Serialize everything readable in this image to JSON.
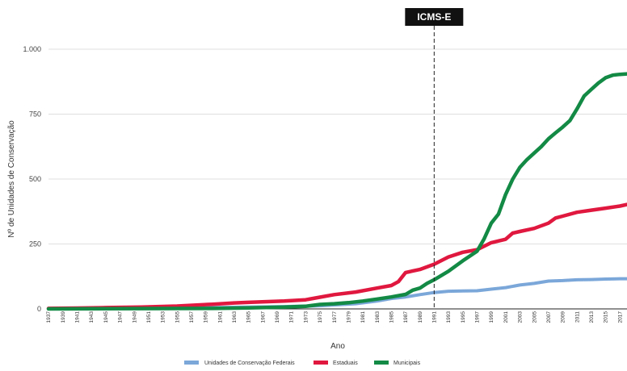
{
  "chart_data": {
    "type": "line",
    "xlabel": "Ano",
    "ylabel": "Nº de Unidades de Conservação",
    "ylim": [
      0,
      1000
    ],
    "yticks": [
      0,
      250,
      500,
      750,
      1000
    ],
    "ytick_labels": [
      "0",
      "250",
      "500",
      "750",
      "1.000"
    ],
    "xlim": [
      1937,
      2018
    ],
    "x_tick_labels": [
      "1937",
      "1939",
      "1941",
      "1943",
      "1945",
      "1947",
      "1949",
      "1951",
      "1953",
      "1955",
      "1957",
      "1959",
      "1961",
      "1963",
      "1965",
      "1967",
      "1969",
      "1971",
      "1973",
      "1975",
      "1977",
      "1979",
      "1981",
      "1983",
      "1985",
      "1987",
      "1989",
      "1991",
      "1993",
      "1995",
      "1997",
      "1999",
      "2001",
      "2003",
      "2005",
      "2007",
      "2009",
      "2011",
      "2013",
      "2015",
      "2017"
    ],
    "grid": "horizontal",
    "legend_position": "bottom",
    "annotation": {
      "x": 1991,
      "label": "ICMS-E",
      "line_style": "dashed"
    },
    "series": [
      {
        "name": "Unidades de Conservação Federais",
        "color": "#7ba7d9",
        "points": [
          [
            1937,
            2
          ],
          [
            1950,
            3
          ],
          [
            1960,
            5
          ],
          [
            1965,
            7
          ],
          [
            1970,
            9
          ],
          [
            1975,
            12
          ],
          [
            1980,
            20
          ],
          [
            1983,
            30
          ],
          [
            1985,
            40
          ],
          [
            1987,
            46
          ],
          [
            1989,
            55
          ],
          [
            1991,
            63
          ],
          [
            1993,
            68
          ],
          [
            1995,
            69
          ],
          [
            1997,
            70
          ],
          [
            1999,
            76
          ],
          [
            2001,
            82
          ],
          [
            2003,
            92
          ],
          [
            2005,
            98
          ],
          [
            2007,
            107
          ],
          [
            2009,
            109
          ],
          [
            2011,
            112
          ],
          [
            2013,
            113
          ],
          [
            2015,
            115
          ],
          [
            2017,
            116
          ],
          [
            2018,
            116
          ]
        ]
      },
      {
        "name": "Estaduais",
        "color": "#e0183f",
        "points": [
          [
            1937,
            2
          ],
          [
            1941,
            3
          ],
          [
            1945,
            5
          ],
          [
            1950,
            7
          ],
          [
            1955,
            11
          ],
          [
            1960,
            18
          ],
          [
            1963,
            23
          ],
          [
            1965,
            25
          ],
          [
            1970,
            30
          ],
          [
            1973,
            35
          ],
          [
            1975,
            45
          ],
          [
            1977,
            55
          ],
          [
            1980,
            65
          ],
          [
            1983,
            80
          ],
          [
            1985,
            90
          ],
          [
            1986,
            105
          ],
          [
            1987,
            140
          ],
          [
            1989,
            152
          ],
          [
            1991,
            172
          ],
          [
            1993,
            200
          ],
          [
            1995,
            218
          ],
          [
            1997,
            228
          ],
          [
            1999,
            255
          ],
          [
            2001,
            268
          ],
          [
            2002,
            292
          ],
          [
            2003,
            298
          ],
          [
            2005,
            310
          ],
          [
            2007,
            330
          ],
          [
            2008,
            350
          ],
          [
            2009,
            357
          ],
          [
            2011,
            372
          ],
          [
            2013,
            380
          ],
          [
            2015,
            388
          ],
          [
            2017,
            396
          ],
          [
            2018,
            402
          ]
        ]
      },
      {
        "name": "Municipais",
        "color": "#138a45",
        "points": [
          [
            1937,
            0
          ],
          [
            1960,
            2
          ],
          [
            1965,
            4
          ],
          [
            1970,
            7
          ],
          [
            1973,
            10
          ],
          [
            1975,
            17
          ],
          [
            1977,
            20
          ],
          [
            1979,
            24
          ],
          [
            1981,
            30
          ],
          [
            1983,
            38
          ],
          [
            1985,
            46
          ],
          [
            1987,
            56
          ],
          [
            1988,
            72
          ],
          [
            1989,
            80
          ],
          [
            1990,
            98
          ],
          [
            1991,
            112
          ],
          [
            1993,
            145
          ],
          [
            1995,
            185
          ],
          [
            1997,
            222
          ],
          [
            1998,
            270
          ],
          [
            1999,
            330
          ],
          [
            2000,
            365
          ],
          [
            2001,
            440
          ],
          [
            2002,
            500
          ],
          [
            2003,
            545
          ],
          [
            2004,
            575
          ],
          [
            2005,
            600
          ],
          [
            2006,
            625
          ],
          [
            2007,
            655
          ],
          [
            2008,
            678
          ],
          [
            2009,
            700
          ],
          [
            2010,
            725
          ],
          [
            2011,
            770
          ],
          [
            2012,
            820
          ],
          [
            2013,
            845
          ],
          [
            2014,
            870
          ],
          [
            2015,
            890
          ],
          [
            2016,
            900
          ],
          [
            2017,
            903
          ],
          [
            2018,
            905
          ]
        ]
      }
    ]
  }
}
